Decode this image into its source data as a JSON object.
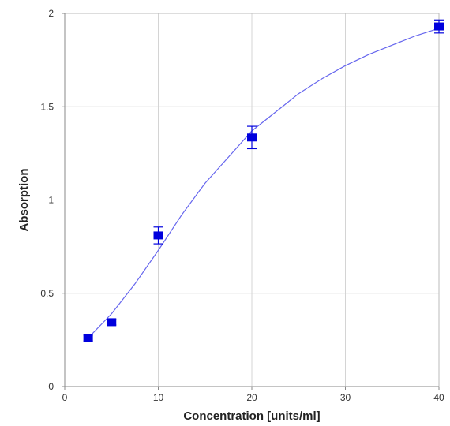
{
  "chart_data": {
    "type": "scatter",
    "title": "",
    "xlabel": "Concentration [units/ml]",
    "ylabel": "Absorption",
    "xlim": [
      0,
      40
    ],
    "ylim": [
      0,
      2
    ],
    "x_ticks": [
      0,
      10,
      20,
      30,
      40
    ],
    "y_ticks": [
      0,
      0.5,
      1,
      1.5,
      2
    ],
    "x_tick_labels": [
      "0",
      "10",
      "20",
      "30",
      "40"
    ],
    "y_tick_labels": [
      "0",
      "0.5",
      "1",
      "1.5",
      "2"
    ],
    "grid": true,
    "series": [
      {
        "marker": "square",
        "color": "#0000dd",
        "points": [
          {
            "x": 2.5,
            "y": 0.26,
            "err": 0.015
          },
          {
            "x": 5,
            "y": 0.345,
            "err": 0.015
          },
          {
            "x": 10,
            "y": 0.81,
            "err": 0.045
          },
          {
            "x": 20,
            "y": 1.335,
            "err": 0.06
          },
          {
            "x": 40,
            "y": 1.93,
            "err": 0.035
          }
        ]
      }
    ],
    "fit_curve": {
      "type": "line",
      "color": "#6666ee",
      "x": [
        2.5,
        5,
        7.5,
        10,
        12.5,
        15,
        17.5,
        20,
        22.5,
        25,
        27.5,
        30,
        32.5,
        35,
        37.5,
        40
      ],
      "y": [
        0.26,
        0.39,
        0.55,
        0.73,
        0.92,
        1.09,
        1.23,
        1.37,
        1.47,
        1.57,
        1.65,
        1.72,
        1.78,
        1.83,
        1.88,
        1.92
      ]
    }
  }
}
